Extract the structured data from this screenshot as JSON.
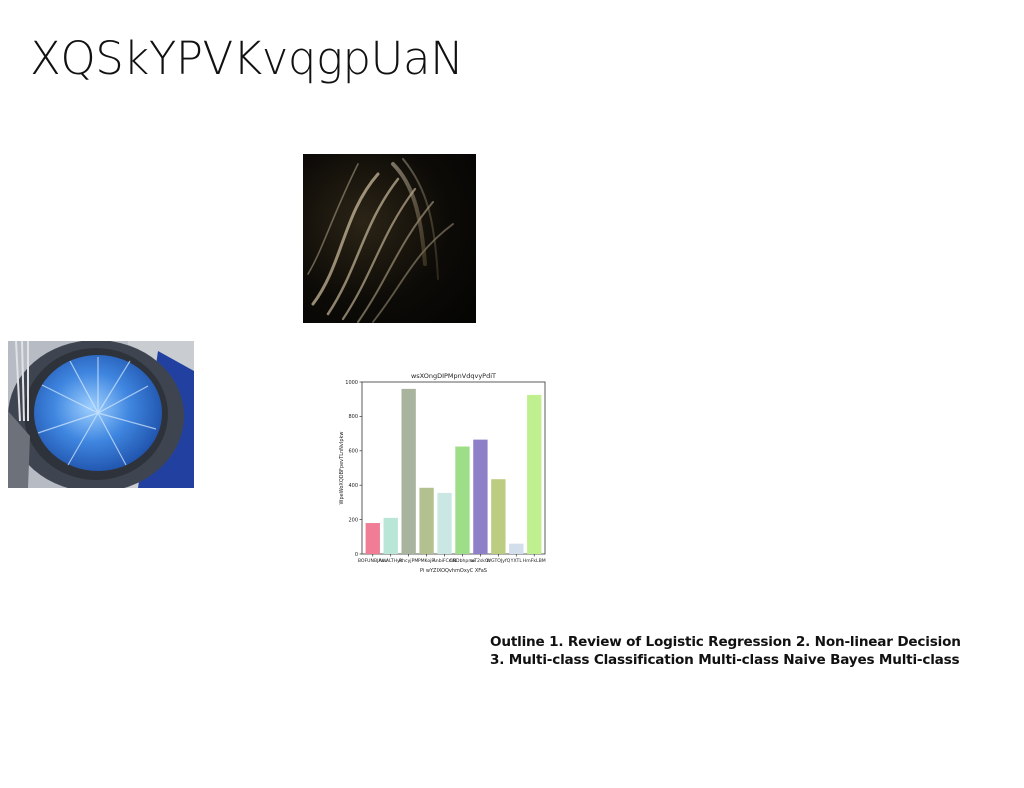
{
  "slide": {
    "title": "XQSkYPVKvqgpUaN",
    "outline_lines": [
      "Outline 1. Review of Logistic Regression 2. Non-linear Decision",
      "3. Multi-class Classification Multi-class Naive Bayes Multi-class"
    ]
  },
  "images": {
    "swirl": "abstract dark swirl photo",
    "pie": "blue pie on plate photo"
  },
  "chart_data": {
    "type": "bar",
    "title": "wsXOngDIPMpnVdqvyPdiT",
    "xlabel": "Pi wYZIXOQvhmOxyC XFaS",
    "ylabel": "WpeWoXQDBFpevTLnNvIpkw",
    "ylim": [
      0,
      1000
    ],
    "yticks": [
      0,
      200,
      400,
      600,
      800,
      1000
    ],
    "grid": false,
    "categories": [
      "BOFUNB",
      "IVaALTH",
      "Rhcyj",
      "PMKojF",
      "AnbiFCmR",
      "CNDbhpmx",
      "wT2sk",
      "WGTOJyf",
      "YXTL",
      "HmFkLBM"
    ],
    "tick_labels": [
      "BOFUNBJAaU",
      "IVaALTHyk",
      "RhcyjPM",
      "PMKojFl",
      "AnbiFCmR",
      "CNDbhpmx",
      "wT2skOr",
      "WGTOJyfQ",
      "YXTL",
      "HmFkLBM"
    ],
    "values": [
      180,
      210,
      960,
      385,
      355,
      625,
      665,
      435,
      60,
      925
    ],
    "colors": [
      "#f07d95",
      "#b9e6d6",
      "#a9b49f",
      "#b3c191",
      "#cbe7e3",
      "#9ede88",
      "#8e80c8",
      "#bccd82",
      "#d3deed",
      "#c0ef90"
    ]
  }
}
